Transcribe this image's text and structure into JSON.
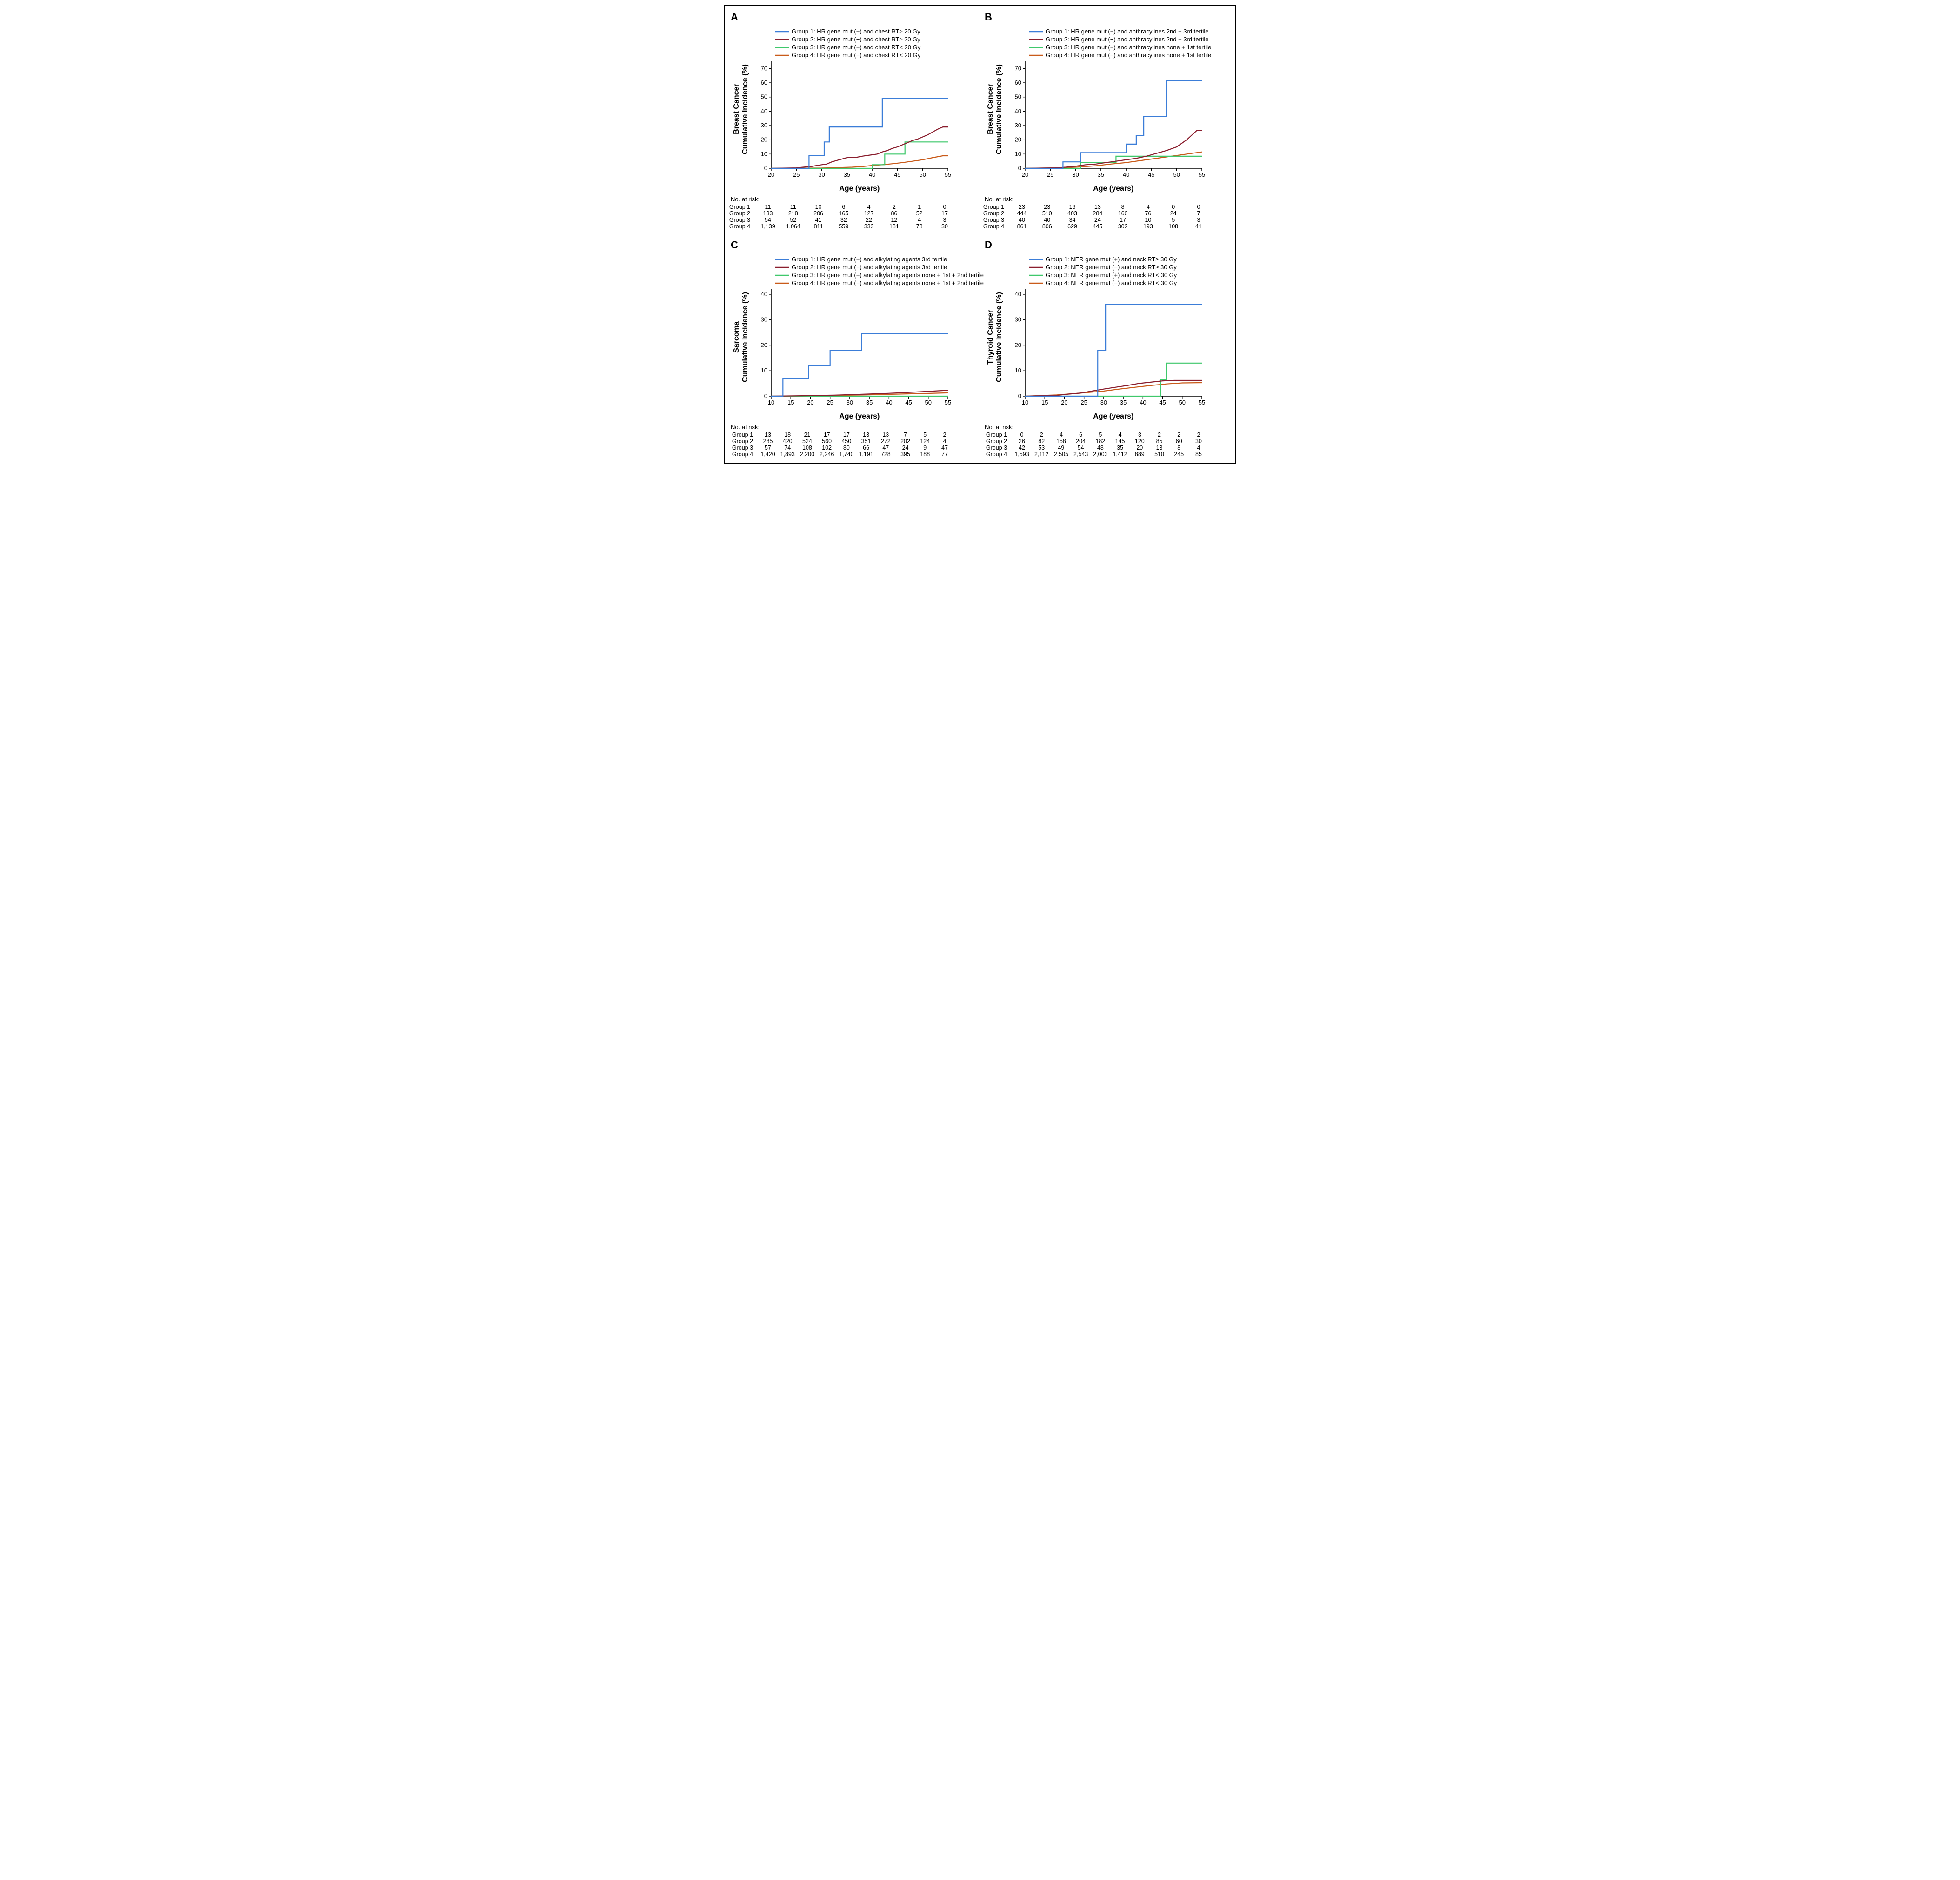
{
  "layout": {
    "border_color": "#000000",
    "background_color": "#ffffff",
    "panel_label_fontsize": 22,
    "ylabel_fontsize": 16,
    "xlabel_fontsize": 16,
    "tick_fontsize": 13,
    "legend_fontsize": 12.5,
    "risk_fontsize": 12.5,
    "line_width": 2.2,
    "axis_color": "#000000"
  },
  "colors": {
    "group1": "#3b7dd8",
    "group2": "#8a1e2e",
    "group3": "#3fc86b",
    "group4": "#c95b1a"
  },
  "panels": {
    "A": {
      "label": "A",
      "ylabel": "Breast Cancer\nCumulative Incidence (%)",
      "xlabel": "Age (years)",
      "xlim": [
        20,
        55
      ],
      "xtick_step": 5,
      "ylim": [
        0,
        75
      ],
      "ytick_step": 10,
      "legend": [
        {
          "color": "group1",
          "text": "Group 1: HR gene mut (+) and chest RT≥ 20 Gy"
        },
        {
          "color": "group2",
          "text": "Group 2: HR gene mut (−) and chest RT≥ 20 Gy"
        },
        {
          "color": "group3",
          "text": "Group 3: HR gene mut (+) and chest RT< 20 Gy"
        },
        {
          "color": "group4",
          "text": "Group 4: HR gene mut (−) and chest RT< 20 Gy"
        }
      ],
      "series": {
        "group1": [
          [
            20,
            0
          ],
          [
            27.5,
            0
          ],
          [
            27.5,
            9
          ],
          [
            30.5,
            9
          ],
          [
            30.5,
            18.5
          ],
          [
            31.5,
            18.5
          ],
          [
            31.5,
            29
          ],
          [
            42,
            29
          ],
          [
            42,
            49
          ],
          [
            55,
            49
          ]
        ],
        "group2": [
          [
            20,
            0
          ],
          [
            25,
            0.3
          ],
          [
            26,
            0.7
          ],
          [
            27,
            1.0
          ],
          [
            28,
            1.3
          ],
          [
            29,
            2.0
          ],
          [
            30,
            2.5
          ],
          [
            31,
            3.0
          ],
          [
            32,
            4.5
          ],
          [
            33,
            5.5
          ],
          [
            34,
            6.5
          ],
          [
            35,
            7.5
          ],
          [
            36,
            7.7
          ],
          [
            37,
            7.8
          ],
          [
            38,
            8.5
          ],
          [
            39,
            9.0
          ],
          [
            40,
            9.5
          ],
          [
            41,
            10.0
          ],
          [
            42,
            11.5
          ],
          [
            43,
            12.5
          ],
          [
            44,
            14.0
          ],
          [
            45,
            15.0
          ],
          [
            46,
            16.5
          ],
          [
            47,
            18.0
          ],
          [
            48,
            19.5
          ],
          [
            49,
            20.5
          ],
          [
            50,
            22.0
          ],
          [
            51,
            23.5
          ],
          [
            52,
            25.5
          ],
          [
            53,
            27.5
          ],
          [
            54,
            29.0
          ],
          [
            55,
            29.0
          ]
        ],
        "group3": [
          [
            20,
            0
          ],
          [
            40,
            0
          ],
          [
            40,
            2.5
          ],
          [
            42.5,
            2.5
          ],
          [
            42.5,
            10
          ],
          [
            46.5,
            10
          ],
          [
            46.5,
            18.5
          ],
          [
            55,
            18.5
          ]
        ],
        "group4": [
          [
            20,
            0
          ],
          [
            30,
            0.2
          ],
          [
            33,
            0.5
          ],
          [
            36,
            0.8
          ],
          [
            38,
            1.2
          ],
          [
            40,
            2.0
          ],
          [
            42,
            2.5
          ],
          [
            44,
            3.2
          ],
          [
            46,
            4.0
          ],
          [
            48,
            5.0
          ],
          [
            50,
            6.0
          ],
          [
            52,
            7.5
          ],
          [
            54,
            8.8
          ],
          [
            55,
            8.8
          ]
        ]
      },
      "risk_title": "No. at risk:",
      "risk_x": [
        20,
        25,
        30,
        35,
        40,
        45,
        50,
        55
      ],
      "risk": [
        {
          "label": "Group 1",
          "vals": [
            "11",
            "11",
            "10",
            "6",
            "4",
            "2",
            "1",
            "0"
          ]
        },
        {
          "label": "Group 2",
          "vals": [
            "133",
            "218",
            "206",
            "165",
            "127",
            "86",
            "52",
            "17"
          ]
        },
        {
          "label": "Group 3",
          "vals": [
            "54",
            "52",
            "41",
            "32",
            "22",
            "12",
            "4",
            "3"
          ]
        },
        {
          "label": "Group 4",
          "vals": [
            "1,139",
            "1,064",
            "811",
            "559",
            "333",
            "181",
            "78",
            "30"
          ]
        }
      ]
    },
    "B": {
      "label": "B",
      "ylabel": "Breast Cancer\nCumulative Incidence (%)",
      "xlabel": "Age (years)",
      "xlim": [
        20,
        55
      ],
      "xtick_step": 5,
      "ylim": [
        0,
        75
      ],
      "ytick_step": 10,
      "legend": [
        {
          "color": "group1",
          "text": "Group 1: HR gene mut (+) and anthracylines 2nd + 3rd tertile"
        },
        {
          "color": "group2",
          "text": "Group 2: HR gene mut (−) and anthracylines 2nd + 3rd tertile"
        },
        {
          "color": "group3",
          "text": "Group 3: HR gene mut (+) and anthracylines none + 1st tertile"
        },
        {
          "color": "group4",
          "text": "Group 4: HR gene mut (−) and anthracylines none + 1st tertile"
        }
      ],
      "series": {
        "group1": [
          [
            20,
            0
          ],
          [
            27.5,
            0
          ],
          [
            27.5,
            4.5
          ],
          [
            31,
            4.5
          ],
          [
            31,
            11
          ],
          [
            40,
            11
          ],
          [
            40,
            17
          ],
          [
            42,
            17
          ],
          [
            42,
            23
          ],
          [
            43.5,
            23
          ],
          [
            43.5,
            36.5
          ],
          [
            48,
            36.5
          ],
          [
            48,
            61.5
          ],
          [
            55,
            61.5
          ]
        ],
        "group2": [
          [
            20,
            0
          ],
          [
            26,
            0.3
          ],
          [
            28,
            0.8
          ],
          [
            30,
            1.5
          ],
          [
            32,
            2.5
          ],
          [
            34,
            3.0
          ],
          [
            36,
            4.0
          ],
          [
            38,
            5.0
          ],
          [
            40,
            6.0
          ],
          [
            42,
            7.0
          ],
          [
            44,
            8.5
          ],
          [
            46,
            10.5
          ],
          [
            48,
            12.5
          ],
          [
            50,
            15.0
          ],
          [
            52,
            20.0
          ],
          [
            54,
            26.5
          ],
          [
            55,
            26.5
          ]
        ],
        "group3": [
          [
            20,
            0
          ],
          [
            31,
            0
          ],
          [
            31,
            4
          ],
          [
            38,
            4
          ],
          [
            38,
            8.5
          ],
          [
            55,
            8.5
          ]
        ],
        "group4": [
          [
            20,
            0
          ],
          [
            28,
            0.5
          ],
          [
            31,
            1.0
          ],
          [
            34,
            1.8
          ],
          [
            37,
            3.0
          ],
          [
            40,
            4.0
          ],
          [
            43,
            5.5
          ],
          [
            46,
            7.0
          ],
          [
            49,
            8.5
          ],
          [
            52,
            10.0
          ],
          [
            55,
            11.5
          ]
        ]
      },
      "risk_title": "No. at risk:",
      "risk_x": [
        20,
        25,
        30,
        35,
        40,
        45,
        50,
        55
      ],
      "risk": [
        {
          "label": "Group 1",
          "vals": [
            "23",
            "23",
            "16",
            "13",
            "8",
            "4",
            "0",
            "0"
          ]
        },
        {
          "label": "Group 2",
          "vals": [
            "444",
            "510",
            "403",
            "284",
            "160",
            "76",
            "24",
            "7"
          ]
        },
        {
          "label": "Group 3",
          "vals": [
            "40",
            "40",
            "34",
            "24",
            "17",
            "10",
            "5",
            "3"
          ]
        },
        {
          "label": "Group 4",
          "vals": [
            "861",
            "806",
            "629",
            "445",
            "302",
            "193",
            "108",
            "41"
          ]
        }
      ]
    },
    "C": {
      "label": "C",
      "ylabel": "Sarcoma\nCumulative Incidence (%)",
      "xlabel": "Age (years)",
      "xlim": [
        10,
        55
      ],
      "xtick_step": 5,
      "ylim": [
        0,
        42
      ],
      "ytick_step": 10,
      "legend": [
        {
          "color": "group1",
          "text": "Group 1: HR gene mut (+) and alkylating agents 3rd tertile"
        },
        {
          "color": "group2",
          "text": "Group 2: HR gene mut (−) and alkylating agents 3rd tertile"
        },
        {
          "color": "group3",
          "text": "Group 3: HR gene mut (+) and alkylating agents none + 1st + 2nd tertile"
        },
        {
          "color": "group4",
          "text": "Group 4: HR gene mut (−) and alkylating agents none + 1st + 2nd tertile"
        }
      ],
      "series": {
        "group1": [
          [
            10,
            0
          ],
          [
            13,
            0
          ],
          [
            13,
            7
          ],
          [
            19.5,
            7
          ],
          [
            19.5,
            12
          ],
          [
            25,
            12
          ],
          [
            25,
            18
          ],
          [
            33,
            18
          ],
          [
            33,
            24.5
          ],
          [
            55,
            24.5
          ]
        ],
        "group2": [
          [
            10,
            0
          ],
          [
            20,
            0.2
          ],
          [
            26,
            0.4
          ],
          [
            32,
            0.7
          ],
          [
            38,
            1.0
          ],
          [
            44,
            1.4
          ],
          [
            50,
            1.9
          ],
          [
            55,
            2.3
          ]
        ],
        "group3": [
          [
            10,
            0
          ],
          [
            55,
            0
          ]
        ],
        "group4": [
          [
            10,
            0
          ],
          [
            18,
            0.1
          ],
          [
            26,
            0.3
          ],
          [
            34,
            0.5
          ],
          [
            42,
            0.8
          ],
          [
            50,
            1.1
          ],
          [
            55,
            1.3
          ]
        ]
      },
      "risk_title": "No. at risk:",
      "risk_x": [
        10,
        15,
        20,
        25,
        30,
        35,
        40,
        45,
        50,
        55
      ],
      "risk": [
        {
          "label": "Group 1",
          "vals": [
            "13",
            "18",
            "21",
            "17",
            "17",
            "13",
            "13",
            "7",
            "5",
            "2"
          ]
        },
        {
          "label": "Group 2",
          "vals": [
            "285",
            "420",
            "524",
            "560",
            "450",
            "351",
            "272",
            "202",
            "124",
            "4"
          ]
        },
        {
          "label": "Group 3",
          "vals": [
            "57",
            "74",
            "108",
            "102",
            "80",
            "66",
            "47",
            "24",
            "9",
            "47"
          ]
        },
        {
          "label": "Group 4",
          "vals": [
            "1,420",
            "1,893",
            "2,200",
            "2,246",
            "1,740",
            "1,191",
            "728",
            "395",
            "188",
            "77"
          ]
        }
      ]
    },
    "D": {
      "label": "D",
      "ylabel": "Thyroid Cancer\nCumulative Incidence (%)",
      "xlabel": "Age (years)",
      "xlim": [
        10,
        55
      ],
      "xtick_step": 5,
      "ylim": [
        0,
        42
      ],
      "ytick_step": 10,
      "legend": [
        {
          "color": "group1",
          "text": "Group 1: NER gene mut (+) and neck RT≥ 30 Gy"
        },
        {
          "color": "group2",
          "text": "Group 2: NER gene mut (−) and neck RT≥ 30 Gy"
        },
        {
          "color": "group3",
          "text": "Group 3: NER gene mut (+) and neck RT< 30 Gy"
        },
        {
          "color": "group4",
          "text": "Group 4: NER gene mut (−) and neck RT< 30 Gy"
        }
      ],
      "series": {
        "group1": [
          [
            10,
            0
          ],
          [
            28.5,
            0
          ],
          [
            28.5,
            18
          ],
          [
            30.5,
            18
          ],
          [
            30.5,
            36
          ],
          [
            55,
            36
          ]
        ],
        "group2": [
          [
            10,
            0
          ],
          [
            18,
            0.3
          ],
          [
            21,
            0.8
          ],
          [
            24,
            1.2
          ],
          [
            27,
            2.0
          ],
          [
            30,
            2.8
          ],
          [
            33,
            3.5
          ],
          [
            36,
            4.2
          ],
          [
            39,
            5.0
          ],
          [
            42,
            5.5
          ],
          [
            45,
            6.0
          ],
          [
            48,
            6.2
          ],
          [
            55,
            6.2
          ]
        ],
        "group3": [
          [
            10,
            0
          ],
          [
            44.5,
            0
          ],
          [
            44.5,
            6.5
          ],
          [
            46,
            6.5
          ],
          [
            46,
            13
          ],
          [
            55,
            13
          ]
        ],
        "group4": [
          [
            10,
            0
          ],
          [
            18,
            0.5
          ],
          [
            24,
            1.2
          ],
          [
            30,
            2.0
          ],
          [
            34,
            2.8
          ],
          [
            38,
            3.5
          ],
          [
            42,
            4.2
          ],
          [
            46,
            4.8
          ],
          [
            50,
            5.2
          ],
          [
            55,
            5.3
          ]
        ]
      },
      "risk_title": "No. at risk:",
      "risk_x": [
        10,
        15,
        20,
        25,
        30,
        35,
        40,
        45,
        50,
        55
      ],
      "risk": [
        {
          "label": "Group 1",
          "vals": [
            "0",
            "2",
            "4",
            "6",
            "5",
            "4",
            "3",
            "2",
            "2",
            "2"
          ]
        },
        {
          "label": "Group 2",
          "vals": [
            "26",
            "82",
            "158",
            "204",
            "182",
            "145",
            "120",
            "85",
            "60",
            "30"
          ]
        },
        {
          "label": "Group 3",
          "vals": [
            "42",
            "53",
            "49",
            "54",
            "48",
            "35",
            "20",
            "13",
            "8",
            "4"
          ]
        },
        {
          "label": "Group 4",
          "vals": [
            "1,593",
            "2,112",
            "2,505",
            "2,543",
            "2,003",
            "1,412",
            "889",
            "510",
            "245",
            "85"
          ]
        }
      ]
    }
  }
}
